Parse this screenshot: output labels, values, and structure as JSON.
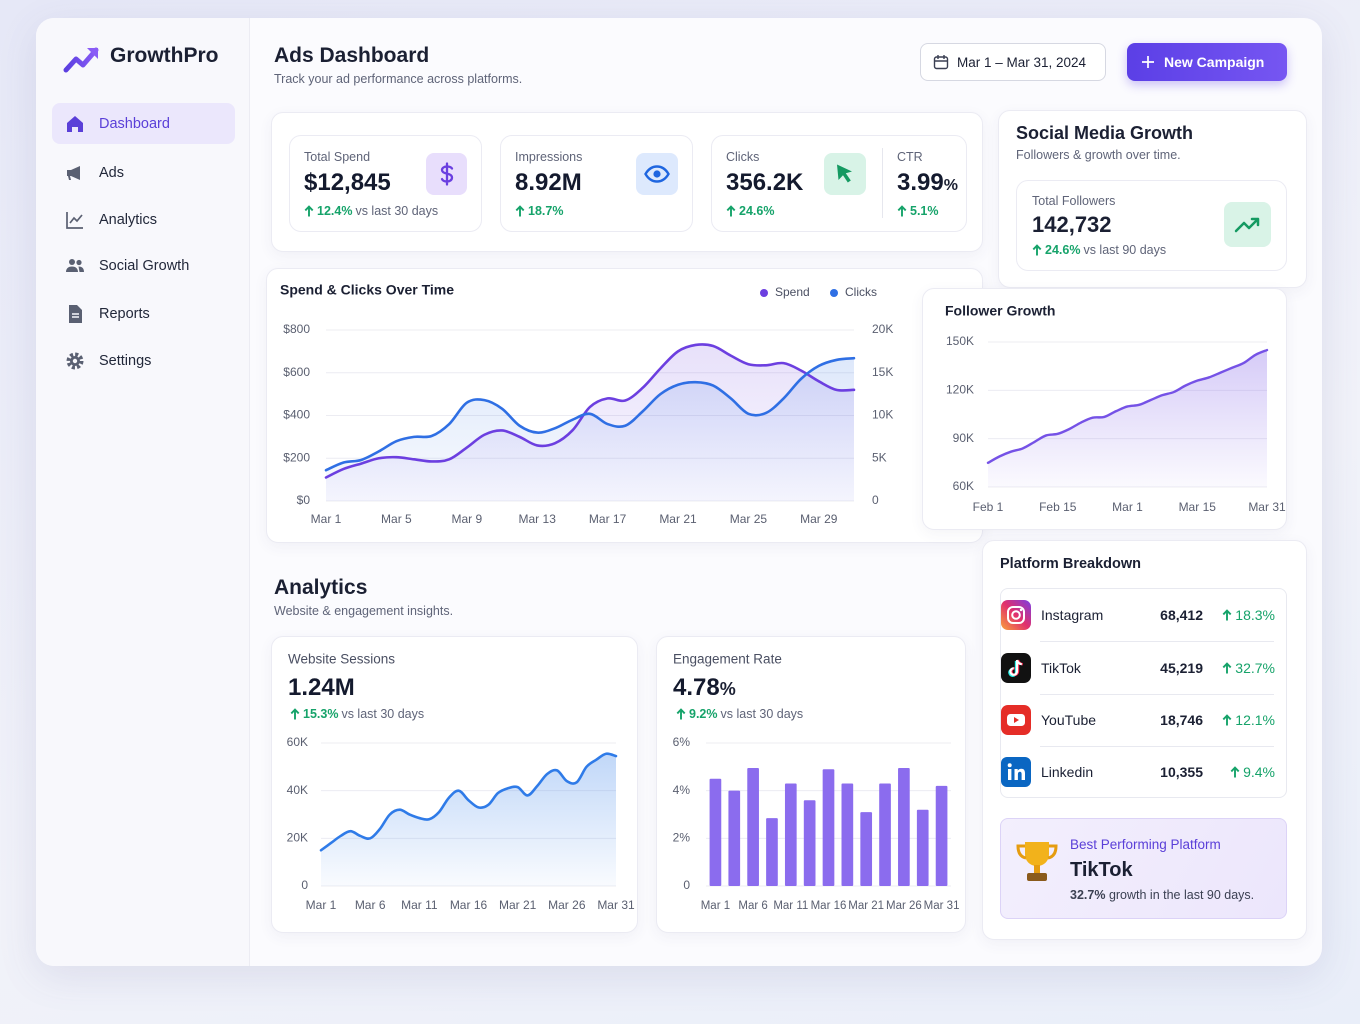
{
  "brand": "GrowthPro",
  "nav": {
    "items": [
      "Dashboard",
      "Ads",
      "Analytics",
      "Social Growth",
      "Reports",
      "Settings"
    ],
    "active": 0
  },
  "header": {
    "title": "Ads Dashboard",
    "subtitle": "Track your ad performance across platforms.",
    "date_range": "Mar 1 – Mar 31, 2024",
    "button": "New Campaign"
  },
  "kpis": [
    {
      "label": "Total Spend",
      "value": "$12,845",
      "change": "12.4%",
      "note": "vs last 30 days"
    },
    {
      "label": "Impressions",
      "value": "8.92M",
      "change": "18.7%"
    },
    {
      "label": "Clicks",
      "value": "356.2K",
      "change": "24.6%"
    },
    {
      "label": "CTR",
      "value": "3.99",
      "unit": "%",
      "change": "5.1%"
    }
  ],
  "social": {
    "title": "Social Media Growth",
    "subtitle": "Followers & growth over time.",
    "total_label": "Total Followers",
    "total": "142,732",
    "change": "24.6%",
    "note": "vs last 90 days"
  },
  "analytics": {
    "title": "Analytics",
    "subtitle": "Website & engagement insights.",
    "sessions": {
      "value": "1.24M",
      "change": "15.3%",
      "note": "vs last 30 days"
    },
    "engagement": {
      "value": "4.78",
      "unit": "%",
      "change": "9.2%",
      "note": "vs last 30 days"
    }
  },
  "platforms": {
    "title": "Platform Breakdown",
    "rows": [
      {
        "name": "Instagram",
        "followers": "68,412",
        "growth": "18.3%"
      },
      {
        "name": "TikTok",
        "followers": "45,219",
        "growth": "32.7%"
      },
      {
        "name": "YouTube",
        "followers": "18,746",
        "growth": "12.1%"
      },
      {
        "name": "Linkedin",
        "followers": "10,355",
        "growth": "9.4%"
      }
    ]
  },
  "best": {
    "label": "Best Performing Platform",
    "name": "TikTok",
    "growth": "32.7%",
    "note": "growth in the last 90 days."
  },
  "chart_data": [
    {
      "type": "area",
      "title": "Spend & Clicks Over Time",
      "legend": "top-right",
      "grid": true,
      "categories": [
        "Mar 1",
        null,
        null,
        null,
        "Mar 5",
        null,
        null,
        null,
        "Mar 9",
        null,
        null,
        null,
        "Mar 13",
        null,
        null,
        null,
        "Mar 17",
        null,
        null,
        null,
        "Mar 21",
        null,
        null,
        null,
        "Mar 25",
        null,
        null,
        null,
        "Mar 29",
        null,
        null
      ],
      "series": [
        {
          "name": "Spend",
          "color": "#6c3fe0",
          "values": [
            110,
            150,
            175,
            200,
            205,
            195,
            185,
            195,
            250,
            310,
            330,
            300,
            260,
            270,
            330,
            440,
            480,
            470,
            530,
            620,
            700,
            730,
            725,
            680,
            640,
            635,
            645,
            610,
            560,
            520,
            520
          ]
        },
        {
          "name": "Clicks",
          "color": "#2f6fe4",
          "axis": "y2",
          "values": [
            3600,
            4500,
            4800,
            5800,
            7000,
            7500,
            7600,
            9000,
            11500,
            11800,
            10800,
            8800,
            8000,
            8500,
            9500,
            10200,
            9000,
            8800,
            10500,
            12500,
            13600,
            13900,
            13500,
            12000,
            10200,
            10300,
            12000,
            14300,
            15800,
            16500,
            16700
          ]
        }
      ],
      "ylim": [
        0,
        800
      ],
      "yticks": [
        {
          "value": 0,
          "label": "$0"
        },
        {
          "value": 200,
          "label": "$200"
        },
        {
          "value": 400,
          "label": "$400"
        },
        {
          "value": 600,
          "label": "$600"
        },
        {
          "value": 800,
          "label": "$800"
        }
      ],
      "y2lim": [
        0,
        20000
      ],
      "y2ticks": [
        0,
        {
          "value": 5000,
          "label": "5K"
        },
        {
          "value": 10000,
          "label": "10K"
        },
        {
          "value": 15000,
          "label": "15K"
        },
        {
          "value": 20000,
          "label": "20K"
        }
      ]
    },
    {
      "type": "area",
      "title": "Follower Growth",
      "grid": true,
      "color": "#7552e6",
      "categories": [
        "Feb 1",
        null,
        null,
        null,
        null,
        null,
        "Feb 15",
        null,
        null,
        null,
        null,
        null,
        "Mar 1",
        null,
        null,
        null,
        null,
        null,
        "Mar 15",
        null,
        null,
        null,
        null,
        null,
        "Mar 31"
      ],
      "values": [
        75000,
        79000,
        82000,
        84000,
        88000,
        92000,
        93000,
        96000,
        100000,
        103000,
        103500,
        107000,
        110000,
        111000,
        114000,
        117000,
        119000,
        123000,
        126000,
        128000,
        131000,
        134000,
        137000,
        142000,
        145000
      ],
      "ylim": [
        60000,
        150000
      ],
      "yticks": [
        {
          "value": 60000,
          "label": "60K"
        },
        {
          "value": 90000,
          "label": "90K"
        },
        {
          "value": 120000,
          "label": "120K"
        },
        {
          "value": 150000,
          "label": "150K"
        }
      ]
    },
    {
      "type": "area",
      "title": "Website Sessions",
      "grid": true,
      "color": "#2f7be8",
      "categories": [
        "Mar 1",
        null,
        null,
        null,
        null,
        "Mar 6",
        null,
        null,
        null,
        null,
        "Mar 11",
        null,
        null,
        null,
        null,
        "Mar 16",
        null,
        null,
        null,
        null,
        "Mar 21",
        null,
        null,
        null,
        null,
        "Mar 26",
        null,
        null,
        null,
        null,
        "Mar 31"
      ],
      "values": [
        15000,
        18000,
        21000,
        23000,
        21000,
        20000,
        24000,
        30000,
        32000,
        30000,
        28500,
        28000,
        31000,
        37000,
        40000,
        36000,
        33000,
        34000,
        39000,
        41000,
        41500,
        38000,
        42000,
        47000,
        48500,
        44000,
        43500,
        50000,
        53000,
        55500,
        54500
      ],
      "ylim": [
        0,
        60000
      ],
      "yticks": [
        0,
        {
          "value": 20000,
          "label": "20K"
        },
        {
          "value": 40000,
          "label": "40K"
        },
        {
          "value": 60000,
          "label": "60K"
        }
      ]
    },
    {
      "type": "bar",
      "title": "Engagement Rate",
      "grid": true,
      "color": "#8b6cee",
      "categories": [
        "Mar 1",
        null,
        "Mar 6",
        null,
        "Mar 11",
        null,
        "Mar 16",
        null,
        "Mar 21",
        null,
        "Mar 26",
        null,
        "Mar 31"
      ],
      "values": [
        4.5,
        4.0,
        4.95,
        2.85,
        4.3,
        3.6,
        4.9,
        4.3,
        3.1,
        4.3,
        4.95,
        3.2,
        4.2
      ],
      "ylim": [
        0,
        6
      ],
      "yticks": [
        0,
        {
          "value": 2,
          "label": "2%"
        },
        {
          "value": 4,
          "label": "4%"
        },
        {
          "value": 6,
          "label": "6%"
        }
      ]
    }
  ]
}
